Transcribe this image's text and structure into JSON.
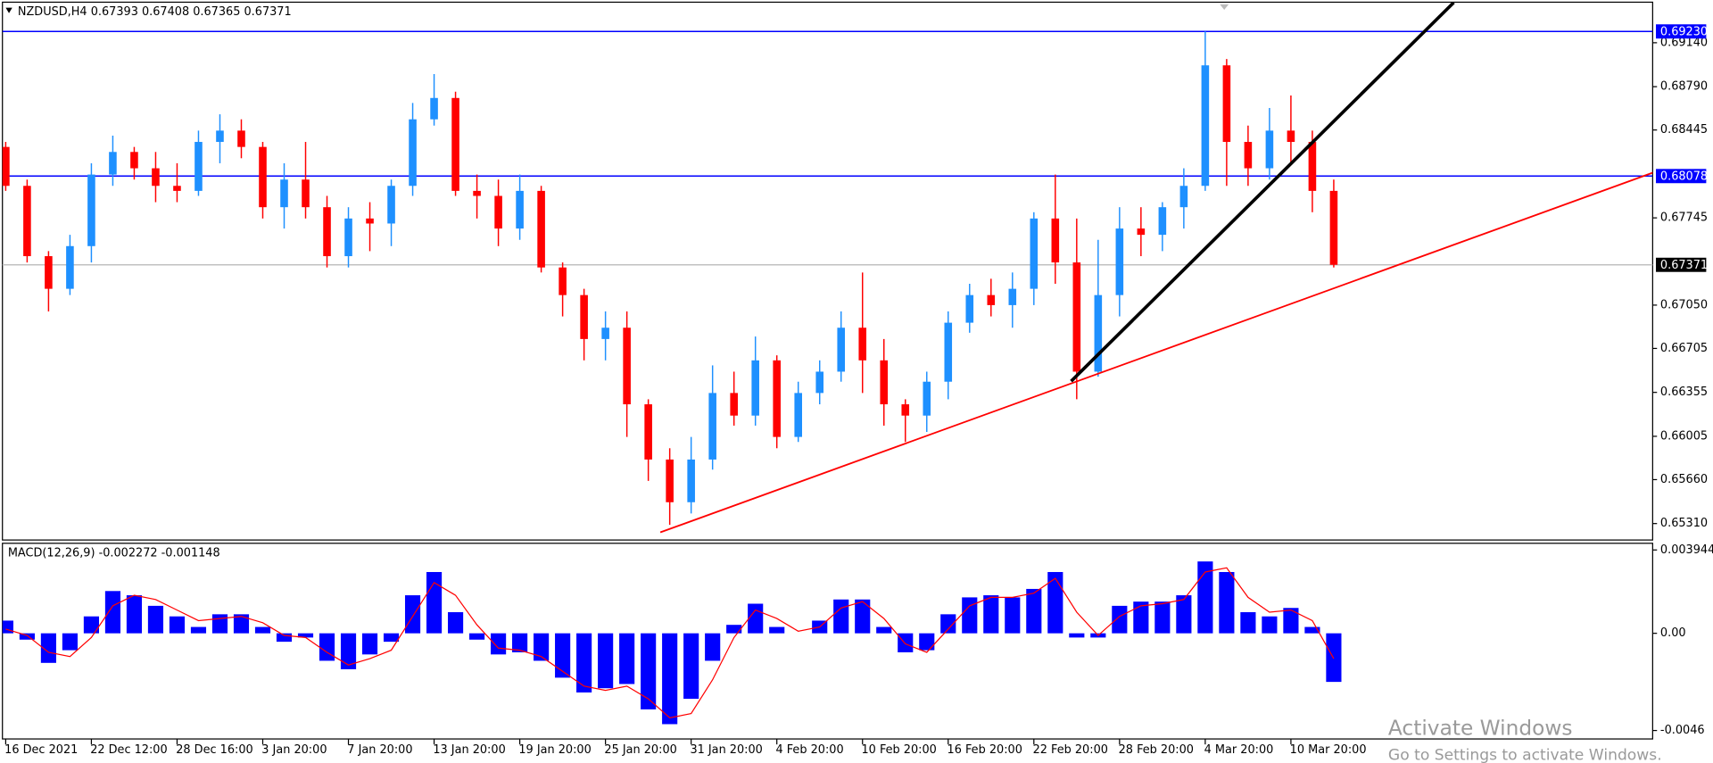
{
  "chart_data": [
    {
      "type": "candlestick",
      "title": "NZDUSD,H4  0.67393 0.67408 0.67365 0.67371",
      "categories": [
        "16 Dec 2021",
        null,
        null,
        null,
        "22 Dec 12:00",
        null,
        null,
        null,
        "28 Dec 16:00",
        null,
        null,
        null,
        "3 Jan 20:00",
        null,
        null,
        null,
        "7 Jan 20:00",
        null,
        null,
        null,
        "13 Jan 20:00",
        null,
        null,
        null,
        "19 Jan 20:00",
        null,
        null,
        null,
        "25 Jan 20:00",
        null,
        null,
        null,
        "31 Jan 20:00",
        null,
        null,
        null,
        "4 Feb 20:00",
        null,
        null,
        null,
        "10 Feb 20:00",
        null,
        null,
        null,
        "16 Feb 20:00",
        null,
        null,
        null,
        "22 Feb 20:00",
        null,
        null,
        null,
        "28 Feb 20:00",
        null,
        null,
        null,
        "4 Mar 20:00",
        null,
        null,
        null,
        "10 Mar 20:00",
        null,
        null
      ],
      "open": [
        0.6831,
        0.68,
        0.6744,
        0.6718,
        0.6752,
        0.6809,
        0.6827,
        0.6814,
        0.68,
        0.6796,
        0.6835,
        0.6844,
        0.6831,
        0.6783,
        0.6805,
        0.6783,
        0.6744,
        0.6774,
        0.677,
        0.68,
        0.6853,
        0.687,
        0.6796,
        0.6792,
        0.6766,
        0.6796,
        0.6735,
        0.6713,
        0.6678,
        0.6687,
        0.6626,
        0.6582,
        0.6548,
        0.6582,
        0.6635,
        0.6617,
        0.6661,
        0.66,
        0.6635,
        0.6652,
        0.6687,
        0.6661,
        0.6626,
        0.6617,
        0.6644,
        0.6691,
        0.6713,
        0.6705,
        0.6718,
        0.6774,
        0.6739,
        0.6652,
        0.6713,
        0.6766,
        0.6761,
        0.6783,
        0.68,
        0.6896,
        0.6835,
        0.6814,
        0.6844,
        0.6835,
        0.6796
      ],
      "high": [
        0.6835,
        0.6805,
        0.6748,
        0.6761,
        0.6818,
        0.684,
        0.6831,
        0.6827,
        0.6818,
        0.6844,
        0.6857,
        0.6853,
        0.6835,
        0.6818,
        0.6835,
        0.6792,
        0.6783,
        0.6787,
        0.6805,
        0.6866,
        0.6889,
        0.6875,
        0.6809,
        0.6805,
        0.6809,
        0.68,
        0.6739,
        0.6718,
        0.67,
        0.67,
        0.663,
        0.6591,
        0.66,
        0.6657,
        0.6652,
        0.668,
        0.6665,
        0.6644,
        0.6661,
        0.67,
        0.6731,
        0.6678,
        0.663,
        0.6652,
        0.67,
        0.6722,
        0.6726,
        0.6731,
        0.6779,
        0.6809,
        0.6774,
        0.6757,
        0.6783,
        0.6783,
        0.6787,
        0.6814,
        0.6923,
        0.6901,
        0.6848,
        0.6862,
        0.6872,
        0.6844,
        0.6805
      ],
      "low": [
        0.6796,
        0.6739,
        0.67,
        0.6713,
        0.6739,
        0.68,
        0.6805,
        0.6787,
        0.6787,
        0.6792,
        0.6818,
        0.6822,
        0.6774,
        0.6766,
        0.6774,
        0.6735,
        0.6735,
        0.6748,
        0.6752,
        0.6792,
        0.6848,
        0.6792,
        0.6774,
        0.6752,
        0.6757,
        0.6731,
        0.6696,
        0.6661,
        0.6661,
        0.66,
        0.6565,
        0.653,
        0.6539,
        0.6574,
        0.6609,
        0.6609,
        0.6591,
        0.6596,
        0.6626,
        0.6644,
        0.6635,
        0.6609,
        0.6596,
        0.6604,
        0.663,
        0.6683,
        0.6696,
        0.6687,
        0.6705,
        0.6722,
        0.663,
        0.6648,
        0.6696,
        0.6744,
        0.6748,
        0.6766,
        0.6796,
        0.68,
        0.68,
        0.6805,
        0.6818,
        0.6779,
        0.6735
      ],
      "close": [
        0.68,
        0.6744,
        0.6718,
        0.6752,
        0.6809,
        0.6827,
        0.6814,
        0.68,
        0.6796,
        0.6835,
        0.6844,
        0.6831,
        0.6783,
        0.6805,
        0.6783,
        0.6744,
        0.6774,
        0.677,
        0.68,
        0.6853,
        0.687,
        0.6796,
        0.6792,
        0.6766,
        0.6796,
        0.6735,
        0.6713,
        0.6678,
        0.6687,
        0.6626,
        0.6582,
        0.6548,
        0.6582,
        0.6635,
        0.6617,
        0.6661,
        0.66,
        0.6635,
        0.6652,
        0.6687,
        0.6661,
        0.6626,
        0.6617,
        0.6644,
        0.6691,
        0.6713,
        0.6705,
        0.6718,
        0.6774,
        0.6739,
        0.6652,
        0.6713,
        0.6766,
        0.6761,
        0.6783,
        0.68,
        0.6896,
        0.6835,
        0.6814,
        0.6844,
        0.6835,
        0.6796,
        0.67371
      ],
      "up_color": "#1e90ff",
      "down_color": "#ff0000",
      "ylim": [
        0.65179,
        0.69463
      ],
      "yticks": [
        {
          "value": 0.6914,
          "label": "0.69140"
        },
        {
          "value": 0.6879,
          "label": "0.68790"
        },
        {
          "value": 0.68445,
          "label": "0.68445"
        },
        {
          "value": 0.67745,
          "label": "0.67745"
        },
        {
          "value": 0.6705,
          "label": "0.67050"
        },
        {
          "value": 0.66705,
          "label": "0.66705"
        },
        {
          "value": 0.66355,
          "label": "0.66355"
        },
        {
          "value": 0.66005,
          "label": "0.66005"
        },
        {
          "value": 0.6566,
          "label": "0.65660"
        },
        {
          "value": 0.6531,
          "label": "0.65310"
        }
      ],
      "hlines": [
        {
          "value": 0.6923,
          "label": "0.69230",
          "color": "#0000ff",
          "box": "#0000ff"
        },
        {
          "value": 0.68078,
          "label": "0.68078",
          "color": "#0000ff",
          "box": "#0000ff"
        },
        {
          "value": 0.67371,
          "label": "0.67371",
          "color": "#c0c0c0",
          "box": "#000000"
        }
      ],
      "trendlines": [
        {
          "x": [
            30.56,
            77.14
          ],
          "y": [
            0.6524,
            0.6812
          ],
          "color": "#ff0000",
          "width": 1.5
        },
        {
          "x": [
            49.74,
            67.6
          ],
          "y": [
            0.66444,
            0.6946
          ],
          "color": "#000000",
          "width": 3
        }
      ]
    },
    {
      "type": "macd",
      "title": "MACD(12,26,9) -0.002272 -0.001148",
      "values": [
        0.0006,
        -0.0003,
        -0.0014,
        -0.0008,
        0.0008,
        0.002,
        0.0018,
        0.0013,
        0.0008,
        0.0003,
        0.0009,
        0.0009,
        0.0003,
        -0.0004,
        -0.0002,
        -0.0013,
        -0.0017,
        -0.001,
        -0.0004,
        0.0018,
        0.0029,
        0.001,
        -0.0003,
        -0.001,
        -0.0009,
        -0.0013,
        -0.0021,
        -0.0028,
        -0.0026,
        -0.0024,
        -0.0036,
        -0.0043,
        -0.0031,
        -0.0013,
        0.0004,
        0.0014,
        0.0003,
        0,
        0.0006,
        0.0016,
        0.0016,
        0.0003,
        -0.0009,
        -0.0008,
        0.0009,
        0.0017,
        0.0018,
        0.0017,
        0.0021,
        0.0029,
        -0.0002,
        -0.0002,
        0.0013,
        0.0015,
        0.0015,
        0.0018,
        0.0034,
        0.0029,
        0.001,
        0.0008,
        0.0012,
        0.0003,
        -0.0023
      ],
      "signal": [
        0.0002,
        -0.0001,
        -0.0009,
        -0.0011,
        -0.0002,
        0.0013,
        0.0018,
        0.0016,
        0.0011,
        0.0006,
        0.0007,
        0.0008,
        0.0005,
        -0.0001,
        -0.0002,
        -0.0009,
        -0.0015,
        -0.0012,
        -0.0008,
        0.0008,
        0.0024,
        0.0018,
        0.0004,
        -0.0007,
        -0.0008,
        -0.0011,
        -0.0018,
        -0.0025,
        -0.0027,
        -0.0025,
        -0.0031,
        -0.004,
        -0.0038,
        -0.0022,
        -0.0002,
        0.0011,
        0.0007,
        0.0001,
        0.0003,
        0.0012,
        0.0015,
        0.0007,
        -0.0005,
        -0.0009,
        0.0002,
        0.0013,
        0.0017,
        0.0017,
        0.0019,
        0.0026,
        0.001,
        -0.0001,
        0.0008,
        0.0013,
        0.0014,
        0.0016,
        0.0029,
        0.0031,
        0.0017,
        0.001,
        0.0011,
        0.0006,
        -0.0012
      ],
      "color": "#0000ff",
      "signal_color": "#ff0000",
      "ylim": [
        -0.005,
        0.00426
      ],
      "yticks": [
        0.003944,
        {
          "value": 0,
          "label": "0.00"
        },
        -0.0046
      ]
    }
  ],
  "watermark": {
    "title": "Activate Windows",
    "subtitle": "Go to Settings to activate Windows."
  }
}
